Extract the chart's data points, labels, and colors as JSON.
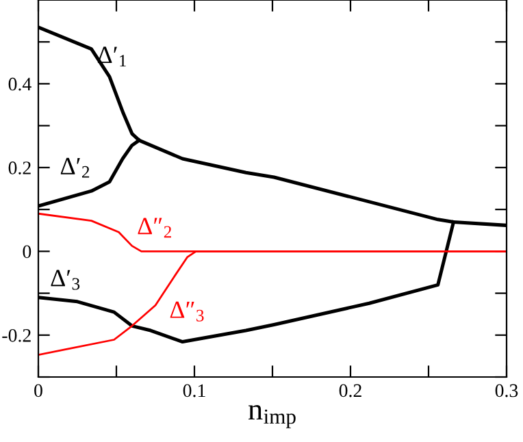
{
  "chart_data": {
    "type": "line",
    "xlabel": "n$_{imp}$",
    "xlim": [
      0,
      0.3
    ],
    "ylim": [
      -0.3,
      0.6
    ],
    "xticks": [
      0,
      {
        "value": 0.05,
        "label": null
      },
      0.1,
      {
        "value": 0.15,
        "label": null
      },
      0.2,
      {
        "value": 0.25,
        "label": null
      },
      0.3
    ],
    "yticks": [
      {
        "value": -0.3,
        "label": null
      },
      -0.2,
      {
        "value": -0.1,
        "label": null
      },
      0,
      {
        "value": 0.1,
        "label": null
      },
      0.2,
      {
        "value": 0.3,
        "label": null
      },
      0.4,
      {
        "value": 0.5,
        "label": null
      }
    ],
    "grid": false,
    "legend": false,
    "marker": "none",
    "line_style": "solid",
    "series": [
      {
        "name": "Δ′$_{1}$",
        "color": "#000000",
        "x": [
          0,
          0.034,
          0.0456,
          0.0544,
          0.06,
          0.0646,
          0.0924,
          0.133,
          0.151,
          0.256,
          0.266,
          0.3
        ],
        "values": [
          0.535,
          0.483,
          0.417,
          0.33,
          0.281,
          0.265,
          0.221,
          0.188,
          0.177,
          0.076,
          0.07,
          0.062
        ]
      },
      {
        "name": "Δ′$_{2}$",
        "color": "#000000",
        "x": [
          0,
          0.034,
          0.0456,
          0.054,
          0.06,
          0.0646
        ],
        "values": [
          0.108,
          0.144,
          0.166,
          0.221,
          0.253,
          0.265
        ]
      },
      {
        "name": "Δ″$_{2}$",
        "color": "#ff0000",
        "x": [
          0,
          0.034,
          0.0515,
          0.06,
          0.066,
          0.3
        ],
        "values": [
          0.09,
          0.073,
          0.046,
          0.013,
          0,
          0
        ]
      },
      {
        "name": "Δ′$_{3}$",
        "color": "#000000",
        "x": [
          0,
          0.025,
          0.0485,
          0.06,
          0.072,
          0.0924,
          0.133,
          0.151,
          0.212,
          0.256,
          0.266
        ],
        "values": [
          -0.11,
          -0.12,
          -0.145,
          -0.178,
          -0.189,
          -0.216,
          -0.189,
          -0.175,
          -0.124,
          -0.08,
          0.07
        ]
      },
      {
        "name": "Δ″$_{3}$",
        "color": "#ff0000",
        "x": [
          0,
          0.0485,
          0.06,
          0.075,
          0.0866,
          0.0954,
          0.101,
          0.3
        ],
        "values": [
          -0.247,
          -0.211,
          -0.178,
          -0.129,
          -0.063,
          -0.014,
          0,
          0
        ]
      }
    ]
  }
}
